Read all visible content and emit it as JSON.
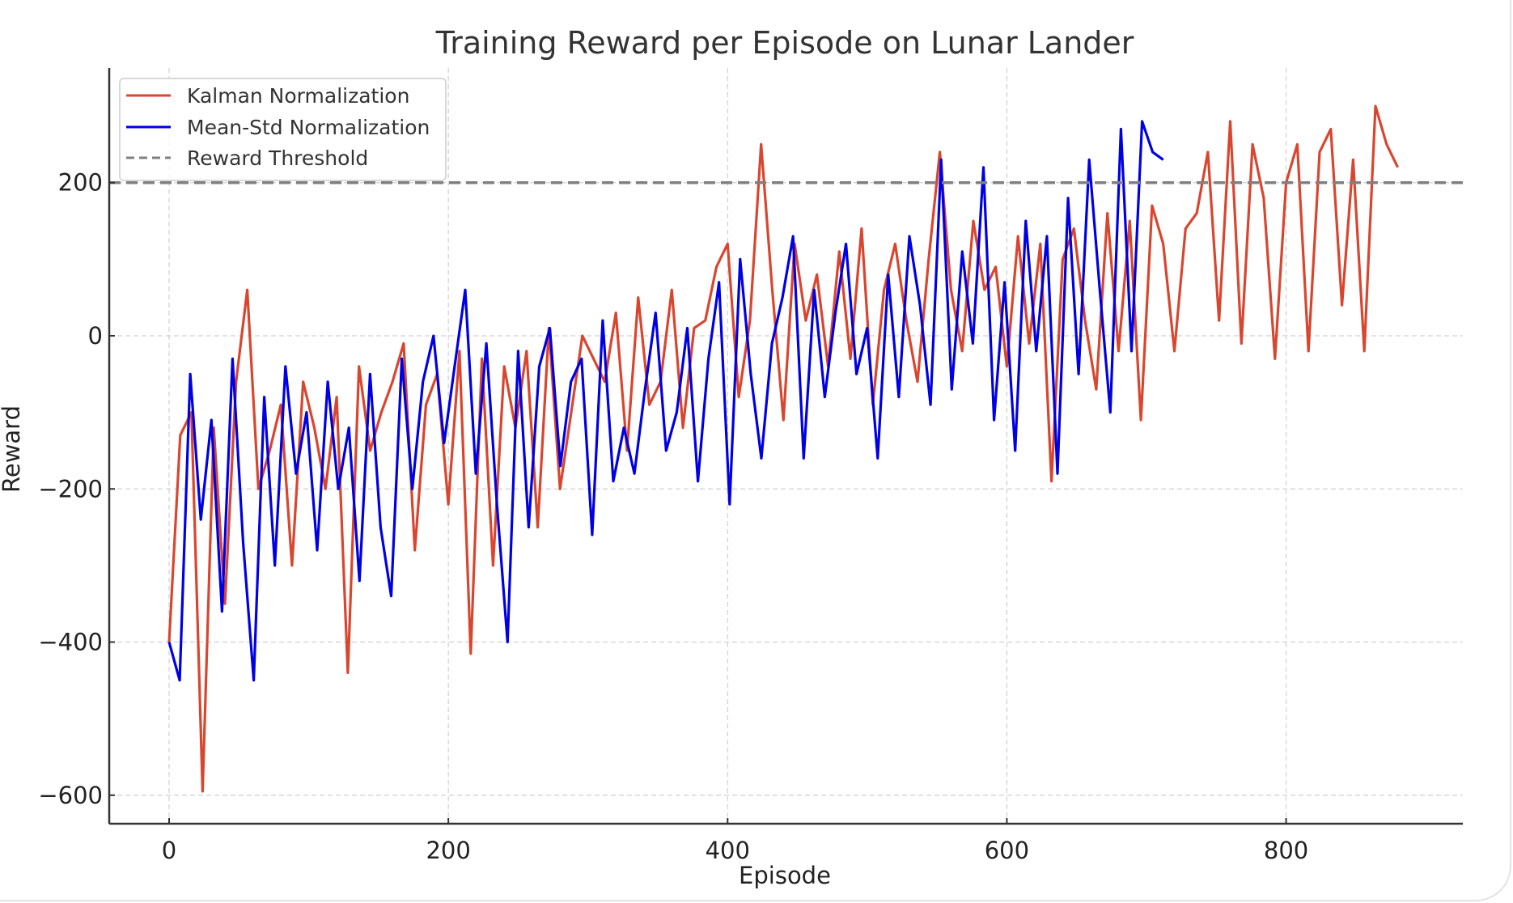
{
  "chart_data": {
    "type": "line",
    "title": "Training Reward per Episode on Lunar Lander",
    "xlabel": "Episode",
    "ylabel": "Reward",
    "xlim": [
      -42,
      925
    ],
    "ylim": [
      -640,
      350
    ],
    "xticks": [
      0,
      200,
      400,
      600,
      800
    ],
    "yticks": [
      200,
      0,
      -200,
      -400,
      -600
    ],
    "xtick_labels": [
      "0",
      "200",
      "400",
      "600",
      "800"
    ],
    "ytick_labels": [
      "200",
      "0",
      "−200",
      "−400",
      "−600"
    ],
    "grid": true,
    "legend_position": "upper left",
    "threshold": {
      "name": "Reward Threshold",
      "value": 200,
      "color": "#808080",
      "style": "dashed"
    },
    "sample_step": 8,
    "series": [
      {
        "name": "Kalman Normalization",
        "color": "#d9462f",
        "x_start": 0,
        "x_end": 880,
        "values": [
          -400,
          -130,
          -100,
          -595,
          -120,
          -350,
          -60,
          60,
          -200,
          -150,
          -90,
          -300,
          -60,
          -120,
          -200,
          -80,
          -440,
          -40,
          -150,
          -100,
          -60,
          -10,
          -280,
          -90,
          -50,
          -220,
          -20,
          -415,
          -30,
          -300,
          -40,
          -120,
          -20,
          -250,
          10,
          -200,
          -100,
          0,
          -30,
          -60,
          30,
          -150,
          50,
          -90,
          -60,
          60,
          -120,
          10,
          20,
          90,
          120,
          -80,
          20,
          250,
          60,
          -110,
          120,
          20,
          80,
          -40,
          110,
          -30,
          140,
          -90,
          60,
          120,
          20,
          -60,
          100,
          240,
          60,
          -20,
          150,
          60,
          90,
          -40,
          130,
          -10,
          120,
          -190,
          100,
          140,
          20,
          -70,
          160,
          -20,
          150,
          -110,
          170,
          120,
          -20,
          140,
          160,
          240,
          20,
          280,
          -10,
          250,
          180,
          -30,
          200,
          250,
          -20,
          240,
          270,
          40,
          230,
          -20,
          300,
          250,
          220
        ]
      },
      {
        "name": "Mean-Std Normalization",
        "color": "#0000e6",
        "x_start": 0,
        "x_end": 712,
        "values": [
          -400,
          -450,
          -50,
          -240,
          -110,
          -360,
          -30,
          -270,
          -450,
          -80,
          -300,
          -40,
          -180,
          -100,
          -280,
          -60,
          -200,
          -120,
          -320,
          -50,
          -250,
          -340,
          -30,
          -200,
          -60,
          0,
          -140,
          -40,
          60,
          -180,
          -10,
          -220,
          -400,
          -20,
          -250,
          -40,
          10,
          -170,
          -60,
          -30,
          -260,
          20,
          -190,
          -120,
          -180,
          -70,
          30,
          -150,
          -100,
          10,
          -190,
          -30,
          70,
          -220,
          100,
          -50,
          -160,
          -10,
          50,
          130,
          -160,
          60,
          -80,
          30,
          120,
          -50,
          10,
          -160,
          80,
          -80,
          130,
          40,
          -90,
          230,
          -70,
          110,
          -10,
          220,
          -110,
          70,
          -150,
          150,
          -20,
          130,
          -180,
          180,
          -50,
          230,
          60,
          -100,
          270,
          -20,
          280,
          240,
          230
        ]
      }
    ]
  }
}
